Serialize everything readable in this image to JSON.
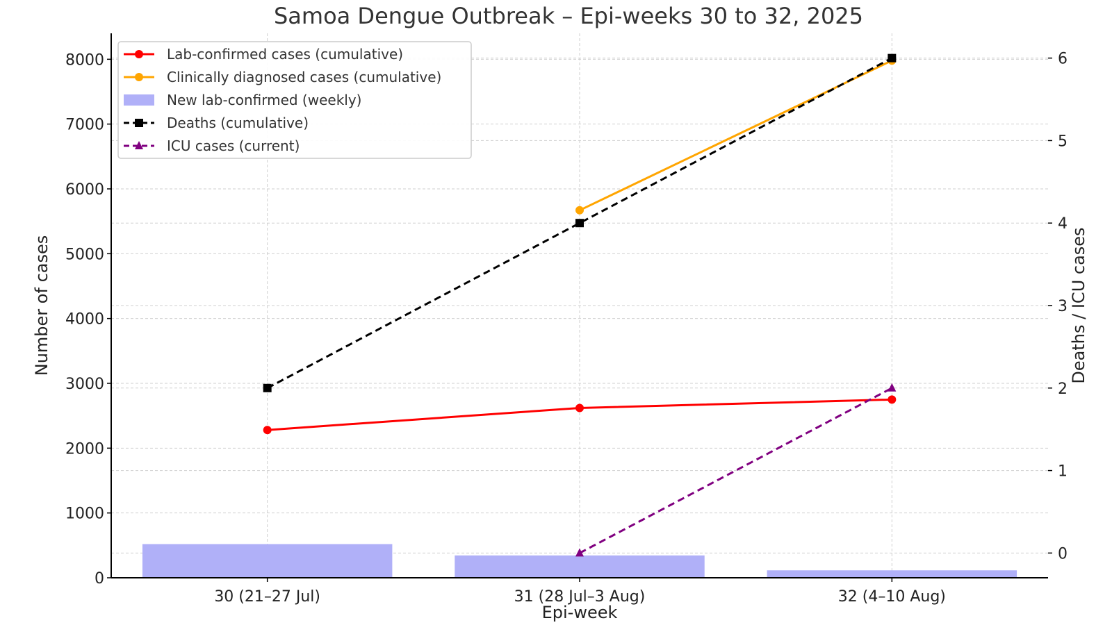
{
  "chart_data": {
    "type": "line",
    "title": "Samoa Dengue Outbreak – Epi-weeks 30 to 32, 2025",
    "xlabel": "Epi-week",
    "ylabel": "Number of cases",
    "y2label": "Deaths / ICU cases",
    "categories": [
      "30 (21–27 Jul)",
      "31 (28 Jul–3 Aug)",
      "32 (4–10 Aug)"
    ],
    "ylim": [
      0,
      8400
    ],
    "y2lim": [
      -0.3,
      6.3
    ],
    "yticks": [
      0,
      1000,
      2000,
      3000,
      4000,
      5000,
      6000,
      7000,
      8000
    ],
    "y2ticks": [
      0,
      1,
      2,
      3,
      4,
      5,
      6
    ],
    "grid": true,
    "legend_position": "top-left",
    "series": [
      {
        "name": "Lab-confirmed cases (cumulative)",
        "kind": "line",
        "axis": "left",
        "color": "#ff0000",
        "marker": "circle",
        "dashed": false,
        "values": [
          2280,
          2620,
          2750
        ]
      },
      {
        "name": "Clinically diagnosed cases (cumulative)",
        "kind": "line",
        "axis": "left",
        "color": "#ffa500",
        "marker": "circle",
        "dashed": false,
        "values": [
          null,
          5670,
          7980
        ]
      },
      {
        "name": "New lab-confirmed (weekly)",
        "kind": "bar",
        "axis": "left",
        "color": "#b0b0f8",
        "marker": "square",
        "dashed": false,
        "values": [
          520,
          345,
          115
        ]
      },
      {
        "name": "Deaths (cumulative)",
        "kind": "line",
        "axis": "right",
        "color": "#000000",
        "marker": "square",
        "dashed": true,
        "values": [
          2,
          4,
          6
        ]
      },
      {
        "name": "ICU cases (current)",
        "kind": "line",
        "axis": "right",
        "color": "#800080",
        "marker": "triangle",
        "dashed": true,
        "values": [
          null,
          0,
          2
        ]
      }
    ]
  }
}
